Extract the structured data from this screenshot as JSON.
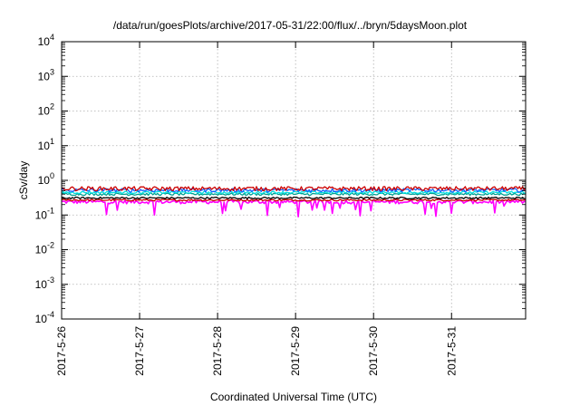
{
  "chart_data": {
    "type": "line",
    "title": "/data/run/goesPlots/archive/2017-05-31/22:00/flux/../bryn/5daysMoon.plot",
    "xlabel": "Coordinated Universal Time (UTC)",
    "ylabel": "cSv/day",
    "y_scale": "log",
    "ylim_exp": [
      -4,
      4
    ],
    "y_tick_exponents": [
      -4,
      -3,
      -2,
      -1,
      0,
      1,
      2,
      3,
      4
    ],
    "xlim_days": [
      0,
      5.95
    ],
    "x_ticks": [
      {
        "day": 0,
        "label": "2017-5-26"
      },
      {
        "day": 1,
        "label": "2017-5-27"
      },
      {
        "day": 2,
        "label": "2017-5-28"
      },
      {
        "day": 3,
        "label": "2017-5-29"
      },
      {
        "day": 4,
        "label": "2017-5-30"
      },
      {
        "day": 5,
        "label": "2017-5-31"
      }
    ],
    "grid": true,
    "series": [
      {
        "color": "#ff00ff",
        "base": 0.24,
        "noise": 0.12,
        "dips": true
      },
      {
        "color": "#cc0000",
        "base": 0.27,
        "noise": 0.06,
        "dips": false
      },
      {
        "color": "#000000",
        "base": 0.31,
        "noise": 0.06,
        "dips": false
      },
      {
        "color": "#00a090",
        "base": 0.4,
        "noise": 0.08,
        "dips": false
      },
      {
        "color": "#00e0e0",
        "base": 0.45,
        "noise": 0.08,
        "dips": false
      },
      {
        "color": "#1060ff",
        "base": 0.52,
        "noise": 0.12,
        "dips": false
      },
      {
        "color": "#cc0000",
        "base": 0.58,
        "noise": 0.14,
        "dips": false
      }
    ]
  }
}
